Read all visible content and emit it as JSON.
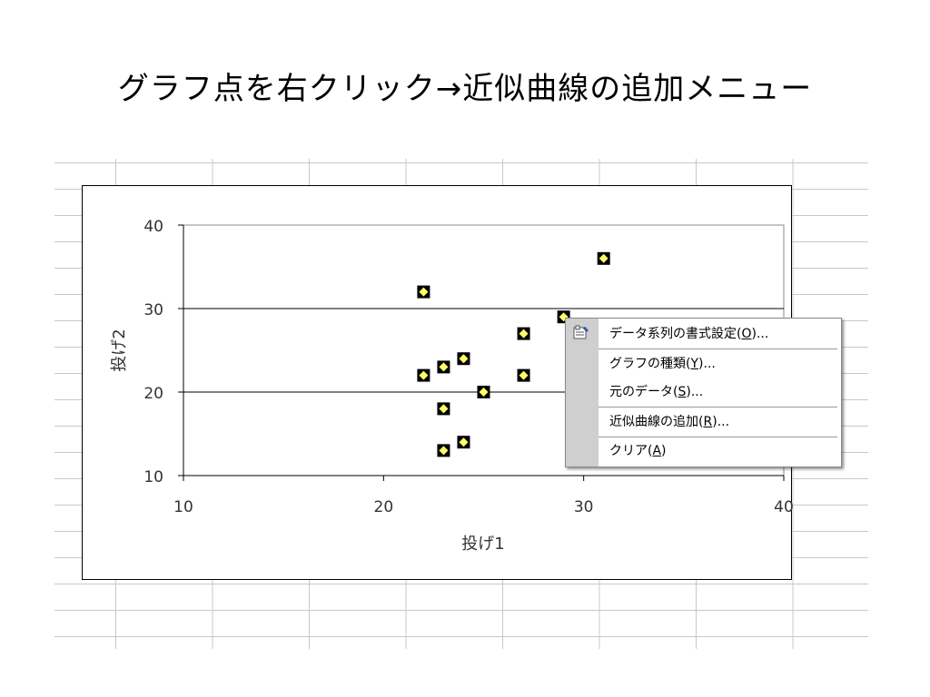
{
  "title": "グラフ点を右クリック→近似曲線の追加メニュー",
  "chart_data": {
    "type": "scatter",
    "xlabel": "投げ1",
    "ylabel": "投げ2",
    "xlim": [
      10,
      40
    ],
    "ylim": [
      10,
      40
    ],
    "x_ticks": [
      10,
      20,
      30,
      40
    ],
    "y_ticks": [
      10,
      20,
      30,
      40
    ],
    "grid": "horizontal",
    "marker_fill": "#ffff66",
    "marker_edge": "#000000",
    "points": [
      {
        "x": 22,
        "y": 32
      },
      {
        "x": 22,
        "y": 22
      },
      {
        "x": 23,
        "y": 23
      },
      {
        "x": 23,
        "y": 18
      },
      {
        "x": 23,
        "y": 13
      },
      {
        "x": 24,
        "y": 24
      },
      {
        "x": 24,
        "y": 14
      },
      {
        "x": 25,
        "y": 20
      },
      {
        "x": 27,
        "y": 27
      },
      {
        "x": 27,
        "y": 22
      },
      {
        "x": 29,
        "y": 29
      },
      {
        "x": 31,
        "y": 36
      }
    ]
  },
  "context_menu": {
    "items": [
      {
        "label": "データ系列の書式設定(",
        "key": "O",
        "suffix": ")...",
        "icon": "format-data-series-icon"
      },
      {
        "label": "グラフの種類(",
        "key": "Y",
        "suffix": ")..."
      },
      {
        "label": "元のデータ(",
        "key": "S",
        "suffix": ")..."
      },
      {
        "label": "近似曲線の追加(",
        "key": "R",
        "suffix": ")..."
      },
      {
        "label": "クリア(",
        "key": "A",
        "suffix": ")"
      }
    ]
  }
}
